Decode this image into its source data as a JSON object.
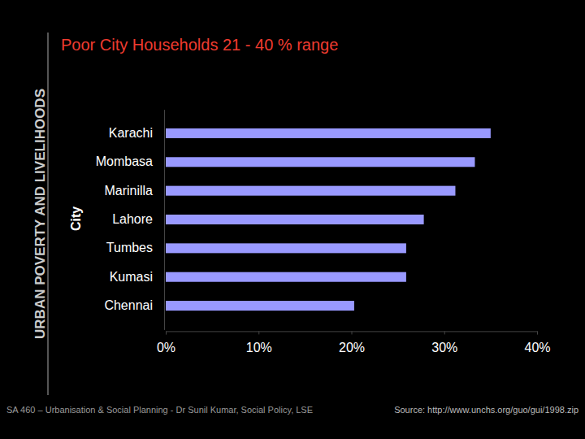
{
  "chart_data": {
    "type": "bar",
    "orientation": "horizontal",
    "title": "Poor City Households 21 - 40 % range",
    "y_label": "City",
    "categories": [
      "Karachi",
      "Mombasa",
      "Marinilla",
      "Lahore",
      "Tumbes",
      "Kumasi",
      "Chennai"
    ],
    "values": [
      35,
      33.3,
      31.2,
      27.8,
      25.9,
      25.9,
      20.3
    ],
    "color": "#9999ff",
    "xlim": [
      0,
      40
    ],
    "xticks": [
      {
        "value": 0,
        "label": "0%"
      },
      {
        "value": 10,
        "label": "10%"
      },
      {
        "value": 20,
        "label": "20%"
      },
      {
        "value": 30,
        "label": "30%"
      },
      {
        "value": 40,
        "label": "40%"
      }
    ],
    "grid": false,
    "annotations": [
      "URBAN POVERTY AND LIVELIHOODS",
      "SA 460 – Urbanisation & Social Planning - Dr Sunil Kumar, Social Policy, LSE",
      "Source: http://www.unchs.org/guo/gui/1998.zip"
    ]
  }
}
